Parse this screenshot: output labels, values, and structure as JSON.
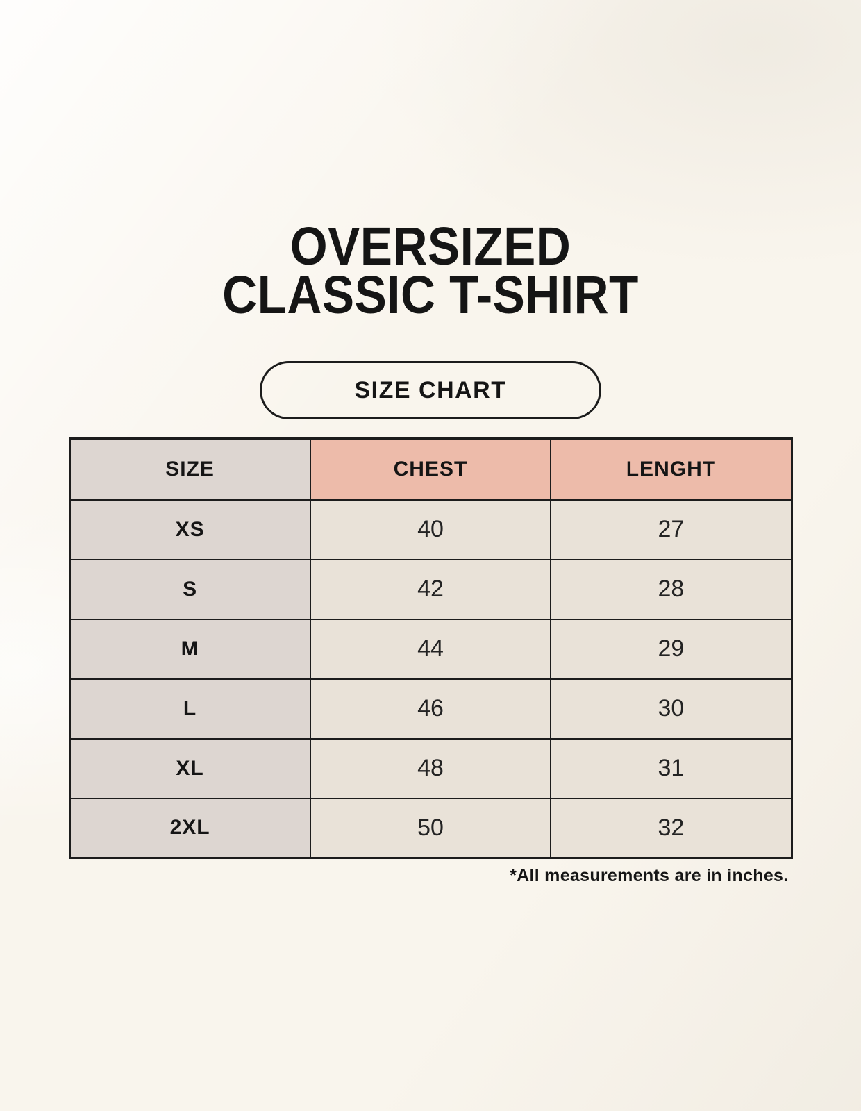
{
  "title": {
    "line1": "OVERSIZED",
    "line2": "CLASSIC T-SHIRT"
  },
  "badge": {
    "label": "SIZE CHART"
  },
  "footnote": "*All measurements are in inches.",
  "chart_data": {
    "type": "table",
    "title": "OVERSIZED CLASSIC T-SHIRT",
    "subtitle": "SIZE CHART",
    "columns": [
      "SIZE",
      "CHEST",
      "LENGHT"
    ],
    "units": "inches",
    "rows": [
      [
        "XS",
        "40",
        "27"
      ],
      [
        "S",
        "42",
        "28"
      ],
      [
        "M",
        "44",
        "29"
      ],
      [
        "L",
        "46",
        "30"
      ],
      [
        "XL",
        "48",
        "31"
      ],
      [
        "2XL",
        "50",
        "32"
      ]
    ]
  },
  "colors": {
    "background": "#f9f5ed",
    "header_accent": "#edbbaa",
    "size_column": "#ddd6d1",
    "cell": "#e9e2d8",
    "border": "#1c1c1c",
    "text": "#151515"
  }
}
